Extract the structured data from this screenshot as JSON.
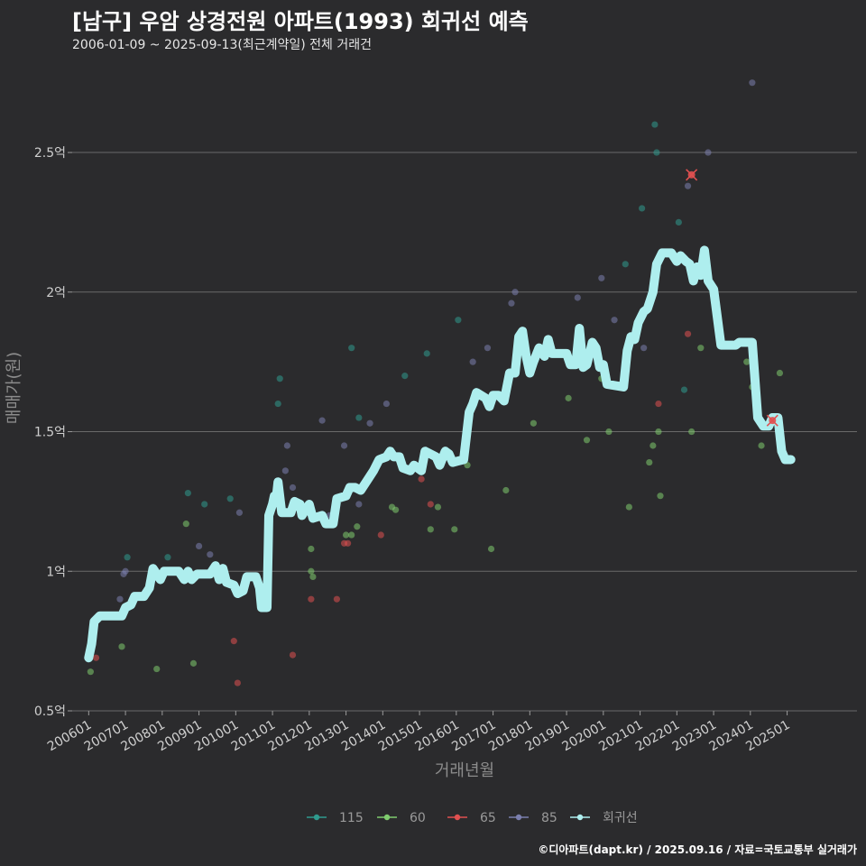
{
  "title": "[남구] 우암 상경전원 아파트(1993) 회귀선 예측",
  "subtitle": "2006-01-09 ~ 2025-09-13(최근계약일) 전체 거래건",
  "credit": "©디아파트(dapt.kr) / 2025.09.16 / 자료=국토교통부 실거래가",
  "chart_data": {
    "type": "scatter",
    "title": "[남구] 우암 상경전원 아파트(1993) 회귀선 예측",
    "xlabel": "거래년월",
    "ylabel": "매매가(원)",
    "ylim": [
      0.5,
      2.82
    ],
    "xlim": [
      2005.55,
      2026.9
    ],
    "grid": true,
    "legend_position": "bottom",
    "y_ticks": [
      {
        "value": 0.5,
        "label": "0.5억"
      },
      {
        "value": 1.0,
        "label": "1억"
      },
      {
        "value": 1.5,
        "label": "1.5억"
      },
      {
        "value": 2.0,
        "label": "2억"
      },
      {
        "value": 2.5,
        "label": "2.5억"
      }
    ],
    "x_ticks": [
      {
        "value": 2006,
        "label": "200601"
      },
      {
        "value": 2007,
        "label": "200701"
      },
      {
        "value": 2008,
        "label": "200801"
      },
      {
        "value": 2009,
        "label": "200901"
      },
      {
        "value": 2010,
        "label": "201001"
      },
      {
        "value": 2011,
        "label": "201101"
      },
      {
        "value": 2012,
        "label": "201201"
      },
      {
        "value": 2013,
        "label": "201301"
      },
      {
        "value": 2014,
        "label": "201401"
      },
      {
        "value": 2015,
        "label": "201501"
      },
      {
        "value": 2016,
        "label": "201601"
      },
      {
        "value": 2017,
        "label": "201701"
      },
      {
        "value": 2018,
        "label": "201801"
      },
      {
        "value": 2019,
        "label": "201901"
      },
      {
        "value": 2020,
        "label": "202001"
      },
      {
        "value": 2021,
        "label": "202101"
      },
      {
        "value": 2022,
        "label": "202201"
      },
      {
        "value": 2023,
        "label": "202301"
      },
      {
        "value": 2024,
        "label": "202401"
      },
      {
        "value": 2025,
        "label": "202501"
      }
    ],
    "series": [
      {
        "name": "115",
        "color": "#2f9a8e",
        "points": [
          [
            2007.05,
            1.05
          ],
          [
            2008.15,
            1.05
          ],
          [
            2008.7,
            1.28
          ],
          [
            2009.15,
            1.24
          ],
          [
            2009.85,
            1.26
          ],
          [
            2011.15,
            1.6
          ],
          [
            2011.2,
            1.69
          ],
          [
            2013.15,
            1.8
          ],
          [
            2013.35,
            1.55
          ],
          [
            2014.6,
            1.7
          ],
          [
            2015.2,
            1.78
          ],
          [
            2016.05,
            1.9
          ],
          [
            2020.6,
            2.1
          ],
          [
            2021.05,
            2.3
          ],
          [
            2021.4,
            2.6
          ],
          [
            2021.45,
            2.5
          ],
          [
            2022.05,
            2.25
          ],
          [
            2022.2,
            1.65
          ]
        ]
      },
      {
        "name": "60",
        "color": "#7fcc6e",
        "points": [
          [
            2006.05,
            0.64
          ],
          [
            2006.9,
            0.73
          ],
          [
            2007.85,
            0.65
          ],
          [
            2008.85,
            0.67
          ],
          [
            2008.65,
            1.17
          ],
          [
            2012.05,
            1.08
          ],
          [
            2012.05,
            1.0
          ],
          [
            2012.1,
            0.98
          ],
          [
            2012.5,
            1.17
          ],
          [
            2013.0,
            1.13
          ],
          [
            2013.15,
            1.13
          ],
          [
            2013.3,
            1.16
          ],
          [
            2014.25,
            1.23
          ],
          [
            2014.35,
            1.22
          ],
          [
            2015.3,
            1.15
          ],
          [
            2015.5,
            1.23
          ],
          [
            2015.95,
            1.15
          ],
          [
            2016.3,
            1.38
          ],
          [
            2016.95,
            1.08
          ],
          [
            2017.35,
            1.29
          ],
          [
            2018.1,
            1.53
          ],
          [
            2019.05,
            1.62
          ],
          [
            2019.55,
            1.47
          ],
          [
            2019.95,
            1.69
          ],
          [
            2020.15,
            1.5
          ],
          [
            2020.7,
            1.23
          ],
          [
            2021.25,
            1.39
          ],
          [
            2021.35,
            1.45
          ],
          [
            2021.5,
            1.5
          ],
          [
            2021.55,
            1.27
          ],
          [
            2022.4,
            1.5
          ],
          [
            2022.65,
            1.8
          ],
          [
            2023.9,
            1.75
          ],
          [
            2024.05,
            1.66
          ],
          [
            2024.3,
            1.45
          ],
          [
            2024.8,
            1.71
          ]
        ]
      },
      {
        "name": "65",
        "color": "#e05050",
        "points": [
          [
            2006.2,
            0.69
          ],
          [
            2009.95,
            0.75
          ],
          [
            2010.05,
            0.6
          ],
          [
            2011.55,
            0.7
          ],
          [
            2012.05,
            0.9
          ],
          [
            2012.75,
            0.9
          ],
          [
            2012.95,
            1.1
          ],
          [
            2013.05,
            1.1
          ],
          [
            2013.95,
            1.13
          ],
          [
            2015.05,
            1.33
          ],
          [
            2015.3,
            1.24
          ],
          [
            2021.5,
            1.6
          ],
          [
            2022.3,
            1.85
          ]
        ]
      },
      {
        "name": "85",
        "color": "#7b7fae",
        "points": [
          [
            2006.85,
            0.9
          ],
          [
            2006.95,
            0.99
          ],
          [
            2007.0,
            1.0
          ],
          [
            2009.0,
            1.09
          ],
          [
            2009.3,
            1.06
          ],
          [
            2009.4,
            1.0
          ],
          [
            2010.1,
            1.21
          ],
          [
            2011.35,
            1.36
          ],
          [
            2011.4,
            1.45
          ],
          [
            2011.55,
            1.3
          ],
          [
            2012.35,
            1.54
          ],
          [
            2012.55,
            1.2
          ],
          [
            2012.65,
            1.2
          ],
          [
            2012.95,
            1.45
          ],
          [
            2013.35,
            1.24
          ],
          [
            2013.65,
            1.53
          ],
          [
            2014.1,
            1.6
          ],
          [
            2016.45,
            1.75
          ],
          [
            2016.85,
            1.8
          ],
          [
            2017.5,
            1.96
          ],
          [
            2017.6,
            2.0
          ],
          [
            2019.3,
            1.98
          ],
          [
            2019.95,
            2.05
          ],
          [
            2020.3,
            1.9
          ],
          [
            2021.1,
            1.8
          ],
          [
            2022.3,
            2.38
          ],
          [
            2022.85,
            2.5
          ],
          [
            2024.05,
            2.75
          ]
        ]
      }
    ],
    "highlight_points": [
      [
        2022.4,
        2.42
      ],
      [
        2024.6,
        1.54
      ]
    ],
    "regression": {
      "name": "회귀선",
      "color": "#aeeeee",
      "points": [
        [
          2006.0,
          0.69
        ],
        [
          2006.08,
          0.74
        ],
        [
          2006.15,
          0.82
        ],
        [
          2006.3,
          0.84
        ],
        [
          2006.9,
          0.84
        ],
        [
          2007.0,
          0.87
        ],
        [
          2007.15,
          0.88
        ],
        [
          2007.25,
          0.91
        ],
        [
          2007.5,
          0.91
        ],
        [
          2007.65,
          0.94
        ],
        [
          2007.75,
          1.01
        ],
        [
          2007.95,
          0.97
        ],
        [
          2008.05,
          1.0
        ],
        [
          2008.45,
          1.0
        ],
        [
          2008.6,
          0.97
        ],
        [
          2008.7,
          1.0
        ],
        [
          2008.8,
          0.97
        ],
        [
          2008.95,
          0.99
        ],
        [
          2009.3,
          0.99
        ],
        [
          2009.45,
          1.02
        ],
        [
          2009.55,
          0.97
        ],
        [
          2009.65,
          1.01
        ],
        [
          2009.75,
          0.96
        ],
        [
          2009.95,
          0.95
        ],
        [
          2010.05,
          0.92
        ],
        [
          2010.2,
          0.93
        ],
        [
          2010.3,
          0.98
        ],
        [
          2010.55,
          0.98
        ],
        [
          2010.65,
          0.94
        ],
        [
          2010.7,
          0.87
        ],
        [
          2010.85,
          0.87
        ],
        [
          2010.9,
          1.2
        ],
        [
          2011.0,
          1.24
        ],
        [
          2011.05,
          1.27
        ],
        [
          2011.1,
          1.26
        ],
        [
          2011.15,
          1.32
        ],
        [
          2011.25,
          1.21
        ],
        [
          2011.5,
          1.21
        ],
        [
          2011.6,
          1.25
        ],
        [
          2011.75,
          1.24
        ],
        [
          2011.8,
          1.2
        ],
        [
          2012.0,
          1.24
        ],
        [
          2012.1,
          1.19
        ],
        [
          2012.35,
          1.2
        ],
        [
          2012.45,
          1.17
        ],
        [
          2012.65,
          1.17
        ],
        [
          2012.75,
          1.26
        ],
        [
          2013.0,
          1.27
        ],
        [
          2013.1,
          1.3
        ],
        [
          2013.25,
          1.3
        ],
        [
          2013.4,
          1.29
        ],
        [
          2013.6,
          1.33
        ],
        [
          2013.75,
          1.36
        ],
        [
          2013.9,
          1.4
        ],
        [
          2014.1,
          1.41
        ],
        [
          2014.2,
          1.43
        ],
        [
          2014.3,
          1.41
        ],
        [
          2014.45,
          1.41
        ],
        [
          2014.55,
          1.37
        ],
        [
          2014.75,
          1.36
        ],
        [
          2014.85,
          1.38
        ],
        [
          2014.95,
          1.37
        ],
        [
          2015.05,
          1.36
        ],
        [
          2015.15,
          1.43
        ],
        [
          2015.45,
          1.41
        ],
        [
          2015.55,
          1.38
        ],
        [
          2015.7,
          1.43
        ],
        [
          2015.8,
          1.42
        ],
        [
          2015.9,
          1.39
        ],
        [
          2016.2,
          1.4
        ],
        [
          2016.35,
          1.57
        ],
        [
          2016.45,
          1.6
        ],
        [
          2016.55,
          1.64
        ],
        [
          2016.8,
          1.62
        ],
        [
          2016.9,
          1.59
        ],
        [
          2017.0,
          1.63
        ],
        [
          2017.15,
          1.63
        ],
        [
          2017.3,
          1.61
        ],
        [
          2017.45,
          1.71
        ],
        [
          2017.6,
          1.71
        ],
        [
          2017.7,
          1.84
        ],
        [
          2017.8,
          1.86
        ],
        [
          2017.9,
          1.77
        ],
        [
          2018.0,
          1.71
        ],
        [
          2018.1,
          1.75
        ],
        [
          2018.25,
          1.8
        ],
        [
          2018.4,
          1.77
        ],
        [
          2018.5,
          1.83
        ],
        [
          2018.6,
          1.78
        ],
        [
          2018.75,
          1.78
        ],
        [
          2019.0,
          1.78
        ],
        [
          2019.1,
          1.74
        ],
        [
          2019.25,
          1.74
        ],
        [
          2019.35,
          1.87
        ],
        [
          2019.45,
          1.73
        ],
        [
          2019.55,
          1.74
        ],
        [
          2019.7,
          1.82
        ],
        [
          2019.8,
          1.8
        ],
        [
          2019.9,
          1.73
        ],
        [
          2020.0,
          1.74
        ],
        [
          2020.1,
          1.67
        ],
        [
          2020.55,
          1.66
        ],
        [
          2020.65,
          1.79
        ],
        [
          2020.75,
          1.84
        ],
        [
          2020.85,
          1.83
        ],
        [
          2020.95,
          1.89
        ],
        [
          2021.1,
          1.93
        ],
        [
          2021.2,
          1.94
        ],
        [
          2021.35,
          2.0
        ],
        [
          2021.45,
          2.1
        ],
        [
          2021.6,
          2.14
        ],
        [
          2021.85,
          2.14
        ],
        [
          2022.0,
          2.11
        ],
        [
          2022.1,
          2.13
        ],
        [
          2022.25,
          2.11
        ],
        [
          2022.35,
          2.1
        ],
        [
          2022.45,
          2.04
        ],
        [
          2022.55,
          2.09
        ],
        [
          2022.65,
          2.06
        ],
        [
          2022.75,
          2.15
        ],
        [
          2022.85,
          2.04
        ],
        [
          2023.0,
          2.01
        ],
        [
          2023.2,
          1.81
        ],
        [
          2023.6,
          1.81
        ],
        [
          2023.7,
          1.82
        ],
        [
          2024.05,
          1.82
        ],
        [
          2024.2,
          1.55
        ],
        [
          2024.35,
          1.52
        ],
        [
          2024.5,
          1.52
        ],
        [
          2024.6,
          1.55
        ],
        [
          2024.75,
          1.55
        ],
        [
          2024.85,
          1.43
        ],
        [
          2024.95,
          1.4
        ],
        [
          2025.1,
          1.4
        ]
      ]
    }
  },
  "legend": [
    {
      "label": "115",
      "color": "#2f9a8e"
    },
    {
      "label": "60",
      "color": "#7fcc6e"
    },
    {
      "label": "65",
      "color": "#e05050"
    },
    {
      "label": "85",
      "color": "#7b7fae"
    },
    {
      "label": "회귀선",
      "color": "#aeeeee"
    }
  ]
}
